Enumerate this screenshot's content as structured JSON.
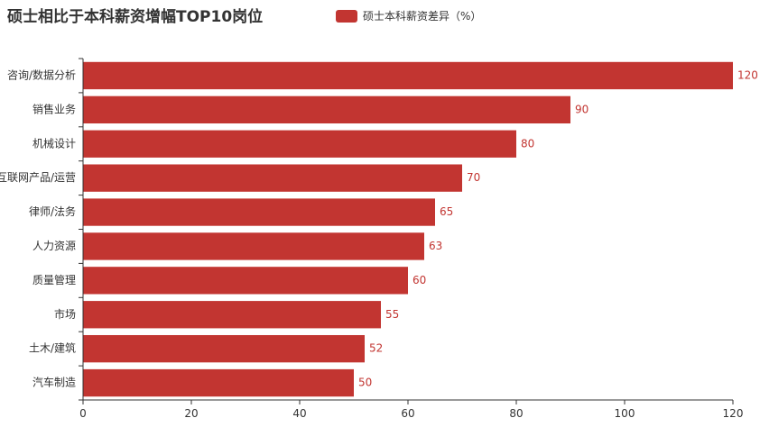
{
  "chart_data": {
    "type": "bar",
    "orientation": "horizontal",
    "title": "硕士相比于本科薪资增幅TOP10岗位",
    "xlabel": "",
    "ylabel": "",
    "xlim": [
      0,
      120
    ],
    "x_ticks": [
      "0",
      "20",
      "40",
      "60",
      "80",
      "100",
      "120"
    ],
    "grid": false,
    "legend_position": "top",
    "categories": [
      "咨询/数据分析",
      "销售业务",
      "机械设计",
      "互联网产品/运营",
      "律师/法务",
      "人力资源",
      "质量管理",
      "市场",
      "土木/建筑",
      "汽车制造"
    ],
    "series": [
      {
        "name": "硕士本科薪资差异（%）",
        "values": [
          120,
          90,
          80,
          70,
          65,
          63,
          60,
          55,
          52,
          50
        ]
      }
    ],
    "colors": {
      "bar": "#c23531",
      "axis": "#333333",
      "tick_label": "#333333",
      "value_label": "#c23531"
    }
  }
}
